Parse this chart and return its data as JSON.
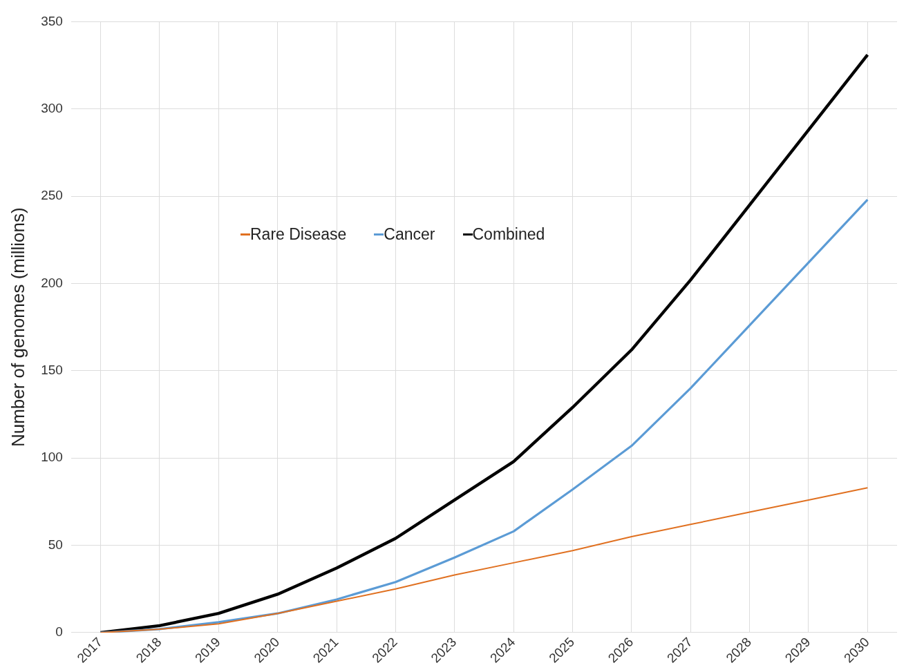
{
  "chart_data": {
    "type": "line",
    "ylabel": "Number of genomes (millions)",
    "categories": [
      "2017",
      "2018",
      "2019",
      "2020",
      "2021",
      "2022",
      "2023",
      "2024",
      "2025",
      "2026",
      "2027",
      "2028",
      "2029",
      "2030"
    ],
    "series": [
      {
        "name": "Rare Disease",
        "color": "#e07020",
        "values": [
          0,
          2,
          5,
          11,
          18,
          25,
          33,
          40,
          47,
          55,
          62,
          69,
          76,
          83
        ]
      },
      {
        "name": "Cancer",
        "color": "#5b9bd5",
        "values": [
          0,
          2,
          6,
          11,
          19,
          29,
          43,
          58,
          82,
          107,
          140,
          176,
          212,
          248
        ]
      },
      {
        "name": "Combined",
        "color": "#000000",
        "values": [
          0,
          4,
          11,
          22,
          37,
          54,
          76,
          98,
          129,
          162,
          202,
          245,
          288,
          331
        ]
      }
    ],
    "ylim": [
      0,
      350
    ],
    "yticks": [
      0,
      50,
      100,
      150,
      200,
      250,
      300,
      350
    ],
    "grid": true,
    "legend": "top left",
    "marker": "none",
    "line_style": "solid"
  }
}
